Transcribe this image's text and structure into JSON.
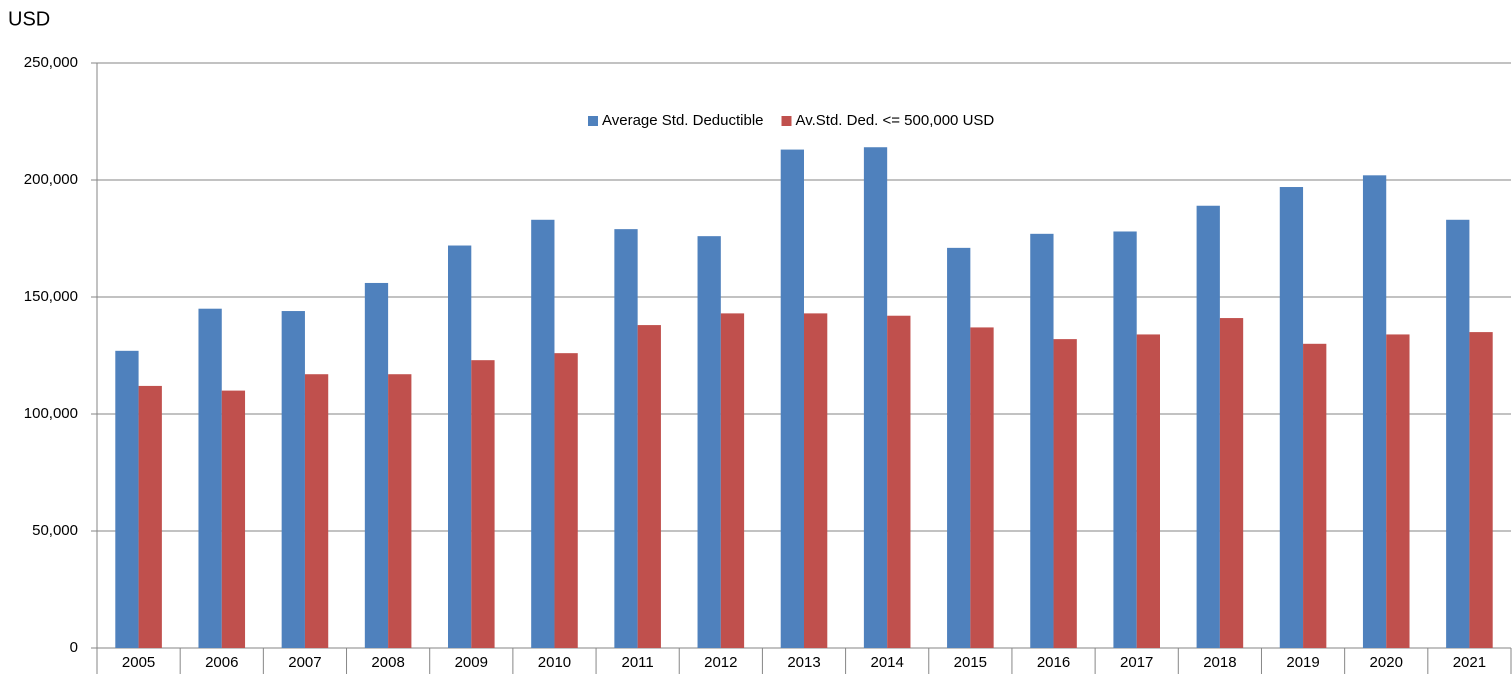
{
  "chart_data": {
    "type": "bar",
    "y_label": "USD",
    "categories": [
      "2005",
      "2006",
      "2007",
      "2008",
      "2009",
      "2010",
      "2011",
      "2012",
      "2013",
      "2014",
      "2015",
      "2016",
      "2017",
      "2018",
      "2019",
      "2020",
      "2021"
    ],
    "series": [
      {
        "name": "Average Std. Deductible",
        "color": "#4f81bd",
        "values": [
          127000,
          145000,
          144000,
          156000,
          172000,
          183000,
          179000,
          176000,
          213000,
          214000,
          171000,
          177000,
          178000,
          189000,
          197000,
          202000,
          183000
        ]
      },
      {
        "name": "Av.Std. Ded. <= 500,000 USD",
        "color": "#c0504d",
        "values": [
          112000,
          110000,
          117000,
          117000,
          123000,
          126000,
          138000,
          143000,
          143000,
          142000,
          137000,
          132000,
          134000,
          141000,
          130000,
          134000,
          135000
        ]
      }
    ],
    "ylim": [
      0,
      250000
    ],
    "yticks": [
      0,
      {
        "value": 50000,
        "label": "50,000"
      },
      {
        "value": 100000,
        "label": "100,000"
      },
      {
        "value": 150000,
        "label": "150,000"
      },
      {
        "value": 200000,
        "label": "200,000"
      },
      {
        "value": 250000,
        "label": "250,000"
      }
    ],
    "grid": true,
    "legend": "top"
  }
}
